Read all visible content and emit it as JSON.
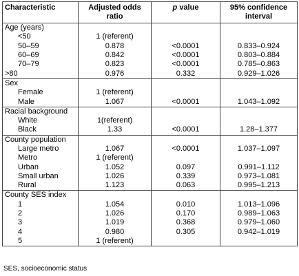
{
  "header": {
    "characteristic": "Characteristic",
    "aor": "Adjusted odds ratio",
    "p_italic": "p",
    "p_rest": " value",
    "ci": "95% confidence interval"
  },
  "groups": [
    {
      "label": "Age (years)",
      "rows": [
        {
          "label": "<50",
          "aor": "1 (referent)",
          "p": "",
          "ci": ""
        },
        {
          "label": "50–59",
          "aor": "0.878",
          "p": "<0.0001",
          "ci": "0.833–0.924"
        },
        {
          "label": "60–69",
          "aor": "0.842",
          "p": "<0.0001",
          "ci": "0.803–0.884"
        },
        {
          "label": "70–79",
          "aor": "0.823",
          "p": "<0.0001",
          "ci": "0.785–0.863"
        },
        {
          "label": ">80",
          "aor": "0.976",
          "p": "0.332",
          "ci": "0.929–1.026",
          "flush": true
        }
      ]
    },
    {
      "label": "Sex",
      "rows": [
        {
          "label": "Female",
          "aor": "1 (referent)",
          "p": "",
          "ci": ""
        },
        {
          "label": "Male",
          "aor": "1.067",
          "p": "<0.0001",
          "ci": "1.043–1.092"
        }
      ]
    },
    {
      "label": "Racial background",
      "rows": [
        {
          "label": "White",
          "aor": "1(referent)",
          "p": "",
          "ci": ""
        },
        {
          "label": "Black",
          "aor": "1.33",
          "p": "<0.0001",
          "ci": "1.28–1.377"
        }
      ]
    },
    {
      "label": "County population",
      "rows": [
        {
          "label": "Large metro",
          "aor": "1.067",
          "p": "<0.0001",
          "ci": "1.037–1.097"
        },
        {
          "label": "Metro",
          "aor": "1 (referent)",
          "p": "",
          "ci": ""
        },
        {
          "label": "Urban",
          "aor": "1.052",
          "p": "0.097",
          "ci": "0.991–1.112"
        },
        {
          "label": "Small urban",
          "aor": "1.026",
          "p": "0.339",
          "ci": "0.973–1.081"
        },
        {
          "label": "Rural",
          "aor": "1.123",
          "p": "0.063",
          "ci": "0.995–1.213"
        }
      ]
    },
    {
      "label": "County SES index",
      "rows": [
        {
          "label": "1",
          "aor": "1.054",
          "p": "0.010",
          "ci": "1.013–1.096"
        },
        {
          "label": "2",
          "aor": "1.026",
          "p": "0.170",
          "ci": "0.989–1.063"
        },
        {
          "label": "3",
          "aor": "1.019",
          "p": "0.368",
          "ci": "0.979–1.060"
        },
        {
          "label": "4",
          "aor": "0.980",
          "p": "0.305",
          "ci": "0.942–1.019"
        },
        {
          "label": "5",
          "aor": "1 (referent)",
          "p": "",
          "ci": ""
        }
      ]
    }
  ],
  "footnote": "SES, socioeconomic status"
}
